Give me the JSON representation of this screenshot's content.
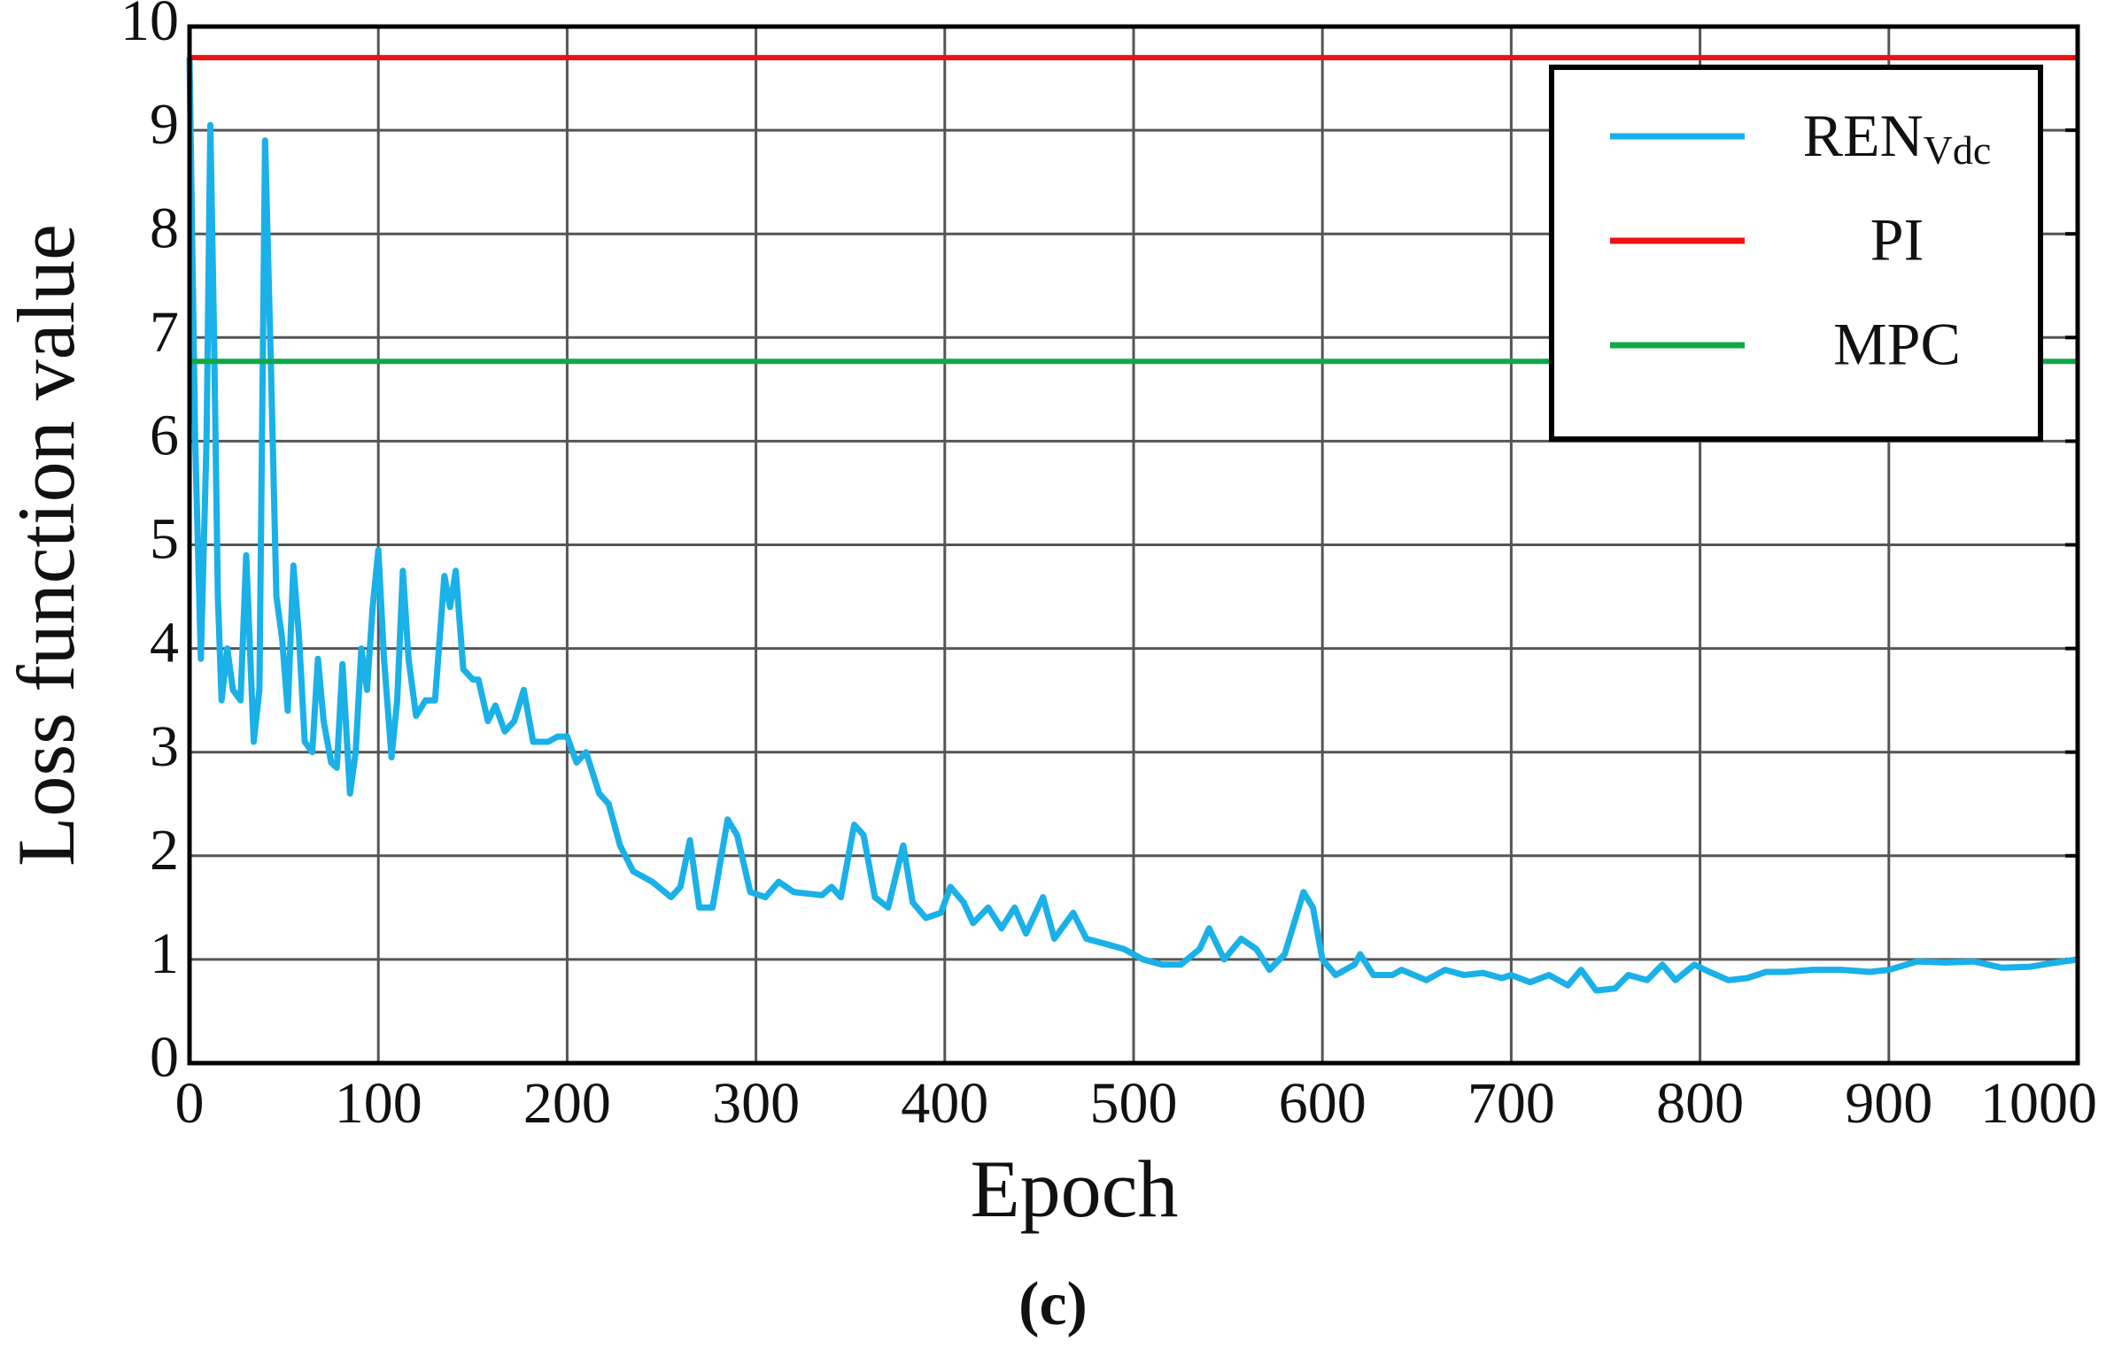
{
  "chart_data": {
    "type": "line",
    "x_label": "Epoch",
    "y_label": "Loss function value",
    "caption": "(c)",
    "xlim": [
      0,
      1000
    ],
    "ylim": [
      0,
      10
    ],
    "xticks": [
      0,
      100,
      200,
      300,
      400,
      500,
      600,
      700,
      800,
      900,
      1000
    ],
    "yticks": [
      0,
      1,
      2,
      3,
      4,
      5,
      6,
      7,
      8,
      9,
      10
    ],
    "grid": true,
    "legend": "upper right",
    "series": [
      {
        "name": "RENVdc",
        "color": "#1ab0e8",
        "x": [
          0,
          3,
          6,
          9,
          11,
          13,
          15,
          17,
          20,
          23,
          27,
          30,
          34,
          37,
          40,
          43,
          46,
          49,
          52,
          55,
          58,
          61,
          65,
          68,
          71,
          75,
          78,
          81,
          85,
          88,
          91,
          94,
          97,
          100,
          103,
          107,
          110,
          113,
          116,
          120,
          125,
          130,
          135,
          138,
          141,
          145,
          150,
          153,
          158,
          162,
          167,
          172,
          177,
          182,
          190,
          195,
          200,
          205,
          210,
          217,
          222,
          228,
          235,
          245,
          255,
          260,
          265,
          270,
          277,
          285,
          290,
          297,
          305,
          312,
          320,
          335,
          340,
          345,
          352,
          357,
          363,
          370,
          378,
          383,
          390,
          398,
          403,
          410,
          415,
          423,
          430,
          437,
          443,
          452,
          458,
          468,
          475,
          485,
          495,
          505,
          515,
          525,
          535,
          540,
          548,
          557,
          565,
          572,
          580,
          590,
          595,
          600,
          607,
          617,
          620,
          627,
          637,
          642,
          655,
          665,
          675,
          685,
          695,
          700,
          710,
          720,
          730,
          737,
          745,
          755,
          762,
          772,
          780,
          787,
          797,
          805,
          815,
          825,
          835,
          845,
          860,
          875,
          890,
          900,
          915,
          930,
          945,
          960,
          975,
          985,
          1000
        ],
        "values": [
          9.7,
          6.0,
          3.9,
          6.0,
          9.05,
          7,
          4.5,
          3.5,
          4.0,
          3.6,
          3.5,
          4.9,
          3.1,
          3.6,
          8.9,
          6.8,
          4.5,
          4.1,
          3.4,
          4.8,
          4.1,
          3.1,
          3.0,
          3.9,
          3.3,
          2.9,
          2.85,
          3.85,
          2.6,
          3.0,
          4.0,
          3.6,
          4.4,
          4.95,
          3.9,
          2.95,
          3.5,
          4.75,
          3.9,
          3.35,
          3.5,
          3.5,
          4.7,
          4.4,
          4.75,
          3.8,
          3.7,
          3.7,
          3.3,
          3.45,
          3.2,
          3.3,
          3.6,
          3.1,
          3.1,
          3.15,
          3.15,
          2.9,
          3.0,
          2.6,
          2.5,
          2.1,
          1.85,
          1.75,
          1.6,
          1.7,
          2.15,
          1.5,
          1.5,
          2.35,
          2.2,
          1.65,
          1.6,
          1.75,
          1.65,
          1.62,
          1.7,
          1.6,
          2.3,
          2.2,
          1.6,
          1.5,
          2.1,
          1.55,
          1.4,
          1.45,
          1.7,
          1.55,
          1.35,
          1.5,
          1.3,
          1.5,
          1.25,
          1.6,
          1.2,
          1.45,
          1.2,
          1.15,
          1.1,
          1.0,
          0.95,
          0.95,
          1.1,
          1.3,
          1.0,
          1.2,
          1.1,
          0.9,
          1.05,
          1.65,
          1.5,
          1.0,
          0.85,
          0.95,
          1.05,
          0.85,
          0.85,
          0.9,
          0.8,
          0.9,
          0.85,
          0.87,
          0.82,
          0.85,
          0.78,
          0.85,
          0.75,
          0.9,
          0.7,
          0.72,
          0.85,
          0.8,
          0.95,
          0.8,
          0.95,
          0.88,
          0.8,
          0.82,
          0.88,
          0.88,
          0.9,
          0.9,
          0.88,
          0.9,
          0.98,
          0.97,
          0.98,
          0.92,
          0.93,
          0.96,
          1.0
        ]
      },
      {
        "name": "PI",
        "color": "#ee1111",
        "x": [
          0,
          1000
        ],
        "values": [
          9.7,
          9.7
        ]
      },
      {
        "name": "MPC",
        "color": "#11a84a",
        "x": [
          0,
          1000
        ],
        "values": [
          6.77,
          6.77
        ]
      }
    ]
  }
}
